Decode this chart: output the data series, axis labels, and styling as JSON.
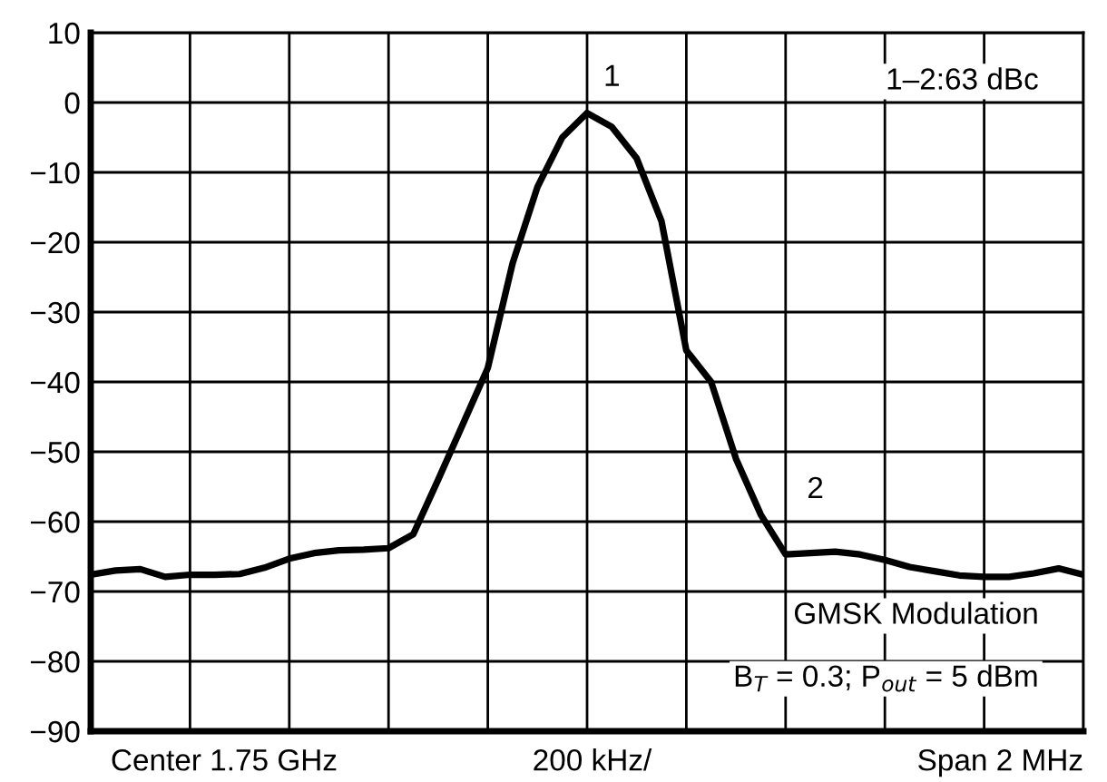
{
  "chart_data": {
    "type": "line",
    "categories": [
      null,
      null,
      null,
      null,
      null,
      null,
      null,
      null,
      null,
      null,
      null,
      null,
      null,
      null,
      null,
      null,
      null,
      null,
      null,
      null,
      null,
      null,
      null,
      null,
      null,
      null,
      null,
      null,
      null,
      null,
      null,
      null,
      null,
      null,
      null,
      null,
      null,
      null,
      null,
      null,
      null
    ],
    "series": [
      {
        "color": "#000000",
        "values": [
          -67.6,
          -67.0,
          -66.8,
          -67.9,
          -67.6,
          -67.6,
          -67.5,
          -66.6,
          -65.3,
          -64.5,
          -64.1,
          -64.0,
          -63.8,
          -61.8,
          -54.0,
          -46.0,
          -38.0,
          -23.0,
          -12.1,
          -5.0,
          -1.5,
          -3.5,
          -8.0,
          -17.0,
          -35.5,
          -40.0,
          -51.0,
          -59.0,
          -64.7,
          -64.5,
          -64.3,
          -64.7,
          -65.5,
          -66.5,
          -67.1,
          -67.7,
          -67.9,
          -67.9,
          -67.4,
          -66.7,
          -67.6
        ]
      }
    ],
    "ylim": [
      -90,
      10
    ],
    "yticks": [
      -90,
      -80,
      -70,
      -60,
      -50,
      -40,
      -30,
      -20,
      -10,
      0,
      10
    ],
    "grid": true,
    "annotations": [
      "1",
      "2",
      "1–2:63 dBc",
      "GMSK Modulation",
      "B$_{T}$ = 0.3; P$_{out}$ = 5 dBm",
      "Center 1.75 GHz",
      "200 kHz/",
      "Span 2 MHz"
    ]
  }
}
